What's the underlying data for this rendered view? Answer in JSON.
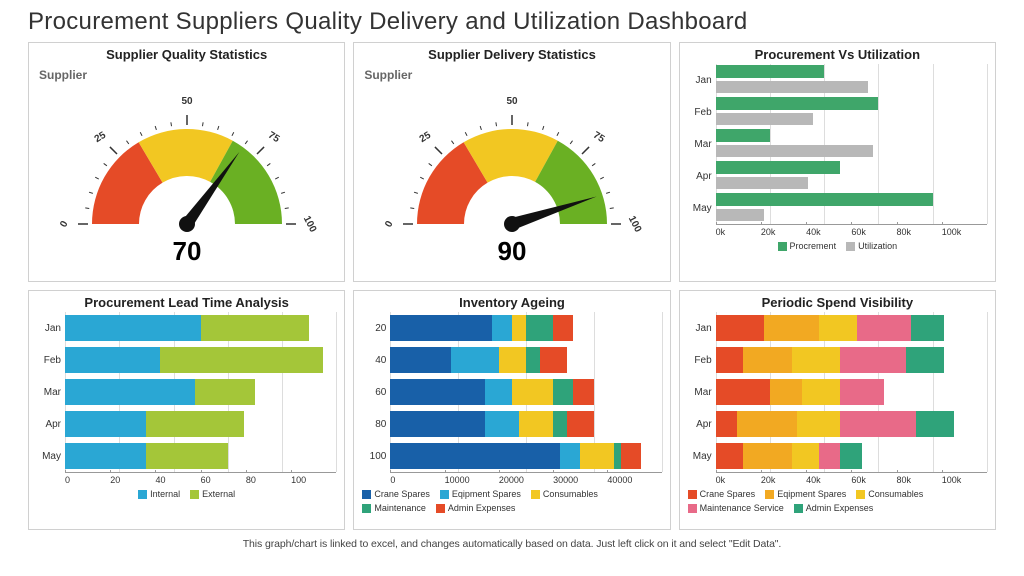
{
  "title": "Procurement Suppliers Quality Delivery and Utilization Dashboard",
  "footer": "This graph/chart is linked to excel, and changes automatically based on data. Just left click on it and select \"Edit Data\".",
  "colors": {
    "red": "#e54b27",
    "orange": "#f2a922",
    "yellow": "#f2c722",
    "green": "#6ab023",
    "green2": "#3fa66a",
    "lime": "#a4c639",
    "cyan": "#2aa7d4",
    "blue": "#1860a8",
    "gray": "#b8b8b8",
    "teal": "#2fa37a",
    "text": "#333333",
    "border": "#d0d0d0",
    "bg": "#ffffff"
  },
  "gauge_quality": {
    "title": "Supplier Quality Statistics",
    "label": "Supplier",
    "value": 70,
    "min": 0,
    "max": 100,
    "ticks": [
      0,
      25,
      50,
      75,
      100
    ],
    "segments": [
      {
        "from": 0,
        "to": 33,
        "color": "#e54b27"
      },
      {
        "from": 33,
        "to": 66,
        "color": "#f2c722"
      },
      {
        "from": 66,
        "to": 100,
        "color": "#6ab023"
      }
    ]
  },
  "gauge_delivery": {
    "title": "Supplier Delivery Statistics",
    "label": "Supplier",
    "value": 90,
    "min": 0,
    "max": 100,
    "ticks": [
      0,
      25,
      50,
      75,
      100
    ],
    "segments": [
      {
        "from": 0,
        "to": 33,
        "color": "#e54b27"
      },
      {
        "from": 33,
        "to": 66,
        "color": "#f2c722"
      },
      {
        "from": 66,
        "to": 100,
        "color": "#6ab023"
      }
    ]
  },
  "proc_util": {
    "title": "Procurement Vs Utilization",
    "type": "grouped-hbar",
    "categories": [
      "Jan",
      "Feb",
      "Mar",
      "Apr",
      "May"
    ],
    "series": [
      {
        "name": "Procrement",
        "color": "#3fa66a",
        "values": [
          40000,
          60000,
          20000,
          46000,
          80000
        ]
      },
      {
        "name": "Utilization",
        "color": "#b8b8b8",
        "values": [
          56000,
          36000,
          58000,
          34000,
          18000
        ]
      }
    ],
    "xlim": 100000,
    "xticks": [
      "0k",
      "20k",
      "40k",
      "60k",
      "80k",
      "100k"
    ]
  },
  "lead_time": {
    "title": "Procurement Lead Time Analysis",
    "type": "stacked-hbar",
    "categories": [
      "Jan",
      "Feb",
      "Mar",
      "Apr",
      "May"
    ],
    "series": [
      {
        "name": "Internal",
        "color": "#2aa7d4",
        "values": [
          50,
          35,
          48,
          30,
          30
        ]
      },
      {
        "name": "External",
        "color": "#a4c639",
        "values": [
          40,
          60,
          22,
          36,
          30
        ]
      }
    ],
    "xlim": 100,
    "xticks": [
      "0",
      "20",
      "40",
      "60",
      "80",
      "100"
    ]
  },
  "inventory": {
    "title": "Inventory Ageing",
    "type": "stacked-hbar",
    "categories": [
      "20",
      "40",
      "60",
      "80",
      "100"
    ],
    "series": [
      {
        "name": "Crane Spares",
        "color": "#1860a8",
        "values": [
          15000,
          9000,
          14000,
          14000,
          25000
        ]
      },
      {
        "name": "Eqipment Spares",
        "color": "#2aa7d4",
        "values": [
          3000,
          7000,
          4000,
          5000,
          3000
        ]
      },
      {
        "name": "Consumables",
        "color": "#f2c722",
        "values": [
          2000,
          4000,
          6000,
          5000,
          5000
        ]
      },
      {
        "name": "Maintenance",
        "color": "#2fa37a",
        "values": [
          4000,
          2000,
          3000,
          2000,
          1000
        ]
      },
      {
        "name": "Admin Expenses",
        "color": "#e54b27",
        "values": [
          3000,
          4000,
          3000,
          4000,
          3000
        ]
      }
    ],
    "xlim": 40000,
    "xticks": [
      "0",
      "10000",
      "20000",
      "30000",
      "40000"
    ]
  },
  "spend": {
    "title": "Periodic Spend Visibility",
    "type": "stacked-hbar",
    "categories": [
      "Jan",
      "Feb",
      "Mar",
      "Apr",
      "May"
    ],
    "series": [
      {
        "name": "Crane Spares",
        "color": "#e54b27",
        "values": [
          18000,
          10000,
          20000,
          8000,
          10000
        ]
      },
      {
        "name": "Eqipment Spares",
        "color": "#f2a922",
        "values": [
          20000,
          18000,
          12000,
          22000,
          18000
        ]
      },
      {
        "name": "Consumables",
        "color": "#f2c722",
        "values": [
          14000,
          18000,
          14000,
          16000,
          10000
        ]
      },
      {
        "name": "Maintenance Service",
        "color": "#e86a88",
        "values": [
          20000,
          24000,
          16000,
          28000,
          8000
        ]
      },
      {
        "name": "Admin Expenses",
        "color": "#2fa37a",
        "values": [
          12000,
          14000,
          0,
          14000,
          8000
        ]
      }
    ],
    "xlim": 100000,
    "xticks": [
      "0k",
      "20k",
      "40k",
      "60k",
      "80k",
      "100k"
    ]
  }
}
